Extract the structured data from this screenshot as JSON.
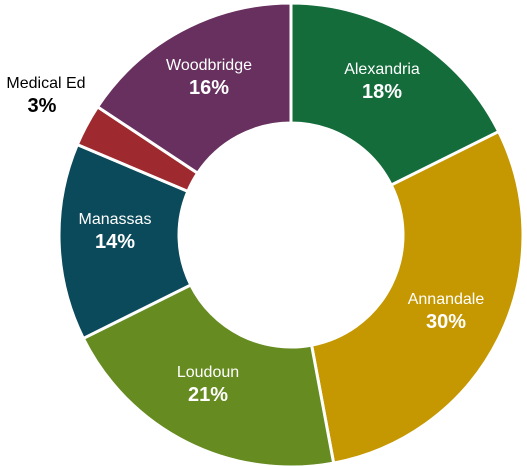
{
  "chart_data": {
    "type": "pie",
    "variant": "donut",
    "legend": "none",
    "slices": [
      {
        "label": "Alexandria",
        "value": 18,
        "display": "18%",
        "color": "#146C3B",
        "label_color": "#ffffff"
      },
      {
        "label": "Annandale",
        "value": 30,
        "display": "30%",
        "color": "#C59700",
        "label_color": "#ffffff"
      },
      {
        "label": "Loudoun",
        "value": 21,
        "display": "21%",
        "color": "#668B20",
        "label_color": "#ffffff"
      },
      {
        "label": "Manassas",
        "value": 14,
        "display": "14%",
        "color": "#0B4A5A",
        "label_color": "#ffffff"
      },
      {
        "label": "Medical Ed",
        "value": 3,
        "display": "3%",
        "color": "#9E2A2F",
        "label_color": "#000000"
      },
      {
        "label": "Woodbridge",
        "value": 16,
        "display": "16%",
        "color": "#67305F",
        "label_color": "#ffffff"
      }
    ]
  }
}
